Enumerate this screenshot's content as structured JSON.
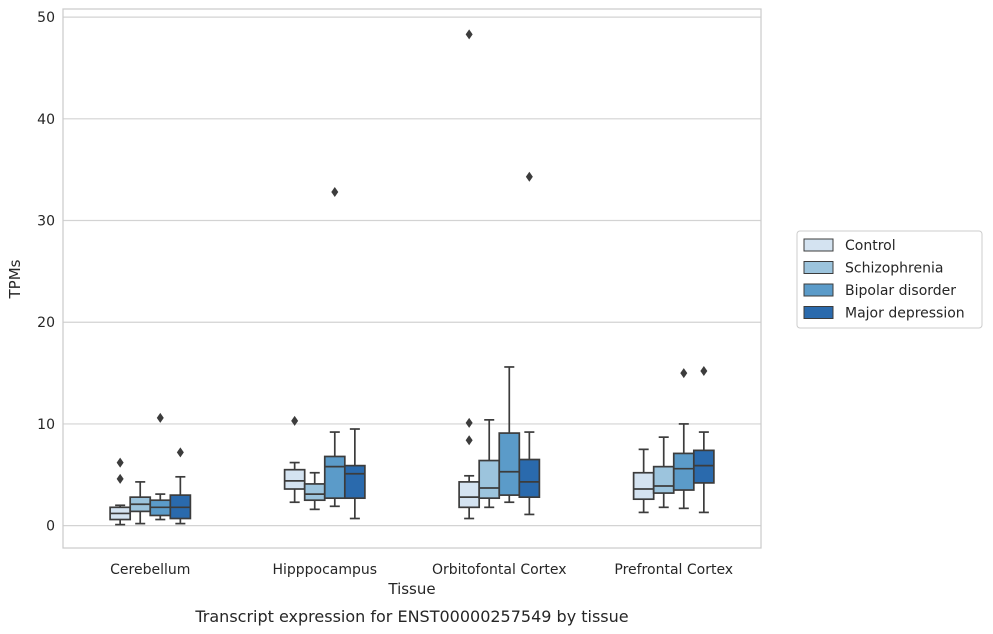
{
  "chart_data": {
    "type": "box",
    "caption": "Transcript expression for ENST00000257549 by tissue",
    "xlabel": "Tissue",
    "ylabel": "TPMs",
    "ylim": [
      -2.2,
      50.8
    ],
    "yticks": [
      0,
      10,
      20,
      30,
      40,
      50
    ],
    "grid": "horizontal",
    "legend_position": "right",
    "categories": [
      "Cerebellum",
      "Hipppocampus",
      "Orbitofontal Cortex",
      "Prefrontal Cortex"
    ],
    "series": [
      {
        "name": "Control",
        "color": "#d4e3f1",
        "boxes": [
          {
            "whislo": 0.1,
            "q1": 0.6,
            "med": 1.2,
            "q3": 1.8,
            "whishi": 2.0,
            "fliers": [
              6.2,
              4.6
            ]
          },
          {
            "whislo": 2.3,
            "q1": 3.6,
            "med": 4.4,
            "q3": 5.5,
            "whishi": 6.2,
            "fliers": [
              10.3
            ]
          },
          {
            "whislo": 0.7,
            "q1": 1.8,
            "med": 2.8,
            "q3": 4.3,
            "whishi": 4.9,
            "fliers": [
              10.1,
              8.4,
              48.3
            ]
          },
          {
            "whislo": 1.3,
            "q1": 2.6,
            "med": 3.6,
            "q3": 5.2,
            "whishi": 7.5,
            "fliers": []
          }
        ]
      },
      {
        "name": "Schizophrenia",
        "color": "#9cc4dd",
        "boxes": [
          {
            "whislo": 0.2,
            "q1": 1.4,
            "med": 2.1,
            "q3": 2.8,
            "whishi": 4.3,
            "fliers": []
          },
          {
            "whislo": 1.6,
            "q1": 2.5,
            "med": 3.1,
            "q3": 4.1,
            "whishi": 5.2,
            "fliers": []
          },
          {
            "whislo": 1.8,
            "q1": 2.7,
            "med": 3.7,
            "q3": 6.4,
            "whishi": 10.4,
            "fliers": []
          },
          {
            "whislo": 1.8,
            "q1": 3.2,
            "med": 3.9,
            "q3": 5.8,
            "whishi": 8.7,
            "fliers": []
          }
        ]
      },
      {
        "name": "Bipolar disorder",
        "color": "#5b9bc9",
        "boxes": [
          {
            "whislo": 0.6,
            "q1": 1.0,
            "med": 1.8,
            "q3": 2.5,
            "whishi": 3.1,
            "fliers": [
              10.6
            ]
          },
          {
            "whislo": 1.9,
            "q1": 2.7,
            "med": 5.8,
            "q3": 6.8,
            "whishi": 9.2,
            "fliers": [
              32.8
            ]
          },
          {
            "whislo": 2.3,
            "q1": 3.0,
            "med": 5.3,
            "q3": 9.1,
            "whishi": 15.6,
            "fliers": []
          },
          {
            "whislo": 1.7,
            "q1": 3.5,
            "med": 5.6,
            "q3": 7.1,
            "whishi": 10.0,
            "fliers": [
              15.0
            ]
          }
        ]
      },
      {
        "name": "Major depression",
        "color": "#2a6aad",
        "boxes": [
          {
            "whislo": 0.2,
            "q1": 0.7,
            "med": 1.8,
            "q3": 3.0,
            "whishi": 4.8,
            "fliers": [
              7.2
            ]
          },
          {
            "whislo": 0.7,
            "q1": 2.7,
            "med": 5.1,
            "q3": 5.9,
            "whishi": 9.5,
            "fliers": []
          },
          {
            "whislo": 1.1,
            "q1": 2.8,
            "med": 4.3,
            "q3": 6.5,
            "whishi": 9.2,
            "fliers": [
              34.3
            ]
          },
          {
            "whislo": 1.3,
            "q1": 4.2,
            "med": 5.9,
            "q3": 7.4,
            "whishi": 9.2,
            "fliers": [
              15.2
            ]
          }
        ]
      }
    ]
  }
}
